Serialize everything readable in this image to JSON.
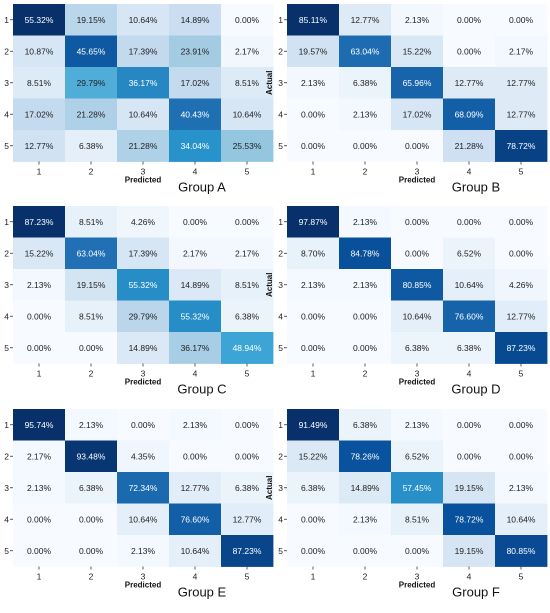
{
  "figure": {
    "xlabel": "Predicted",
    "ylabel": "Actual",
    "colors": {
      "low": "#f7fbff",
      "mid": "#9ecae1",
      "accent": "#2b9fd3",
      "high": "#08306b",
      "text_dark": "#222222",
      "text_light": "#ffffff"
    }
  },
  "chart_data": [
    {
      "type": "heatmap",
      "title": "Group A",
      "xlabel": "Predicted",
      "ylabel": "Actual",
      "x_categories": [
        "1",
        "2",
        "3",
        "4",
        "5"
      ],
      "y_categories": [
        "1",
        "2",
        "3",
        "4",
        "5"
      ],
      "values": [
        [
          "55.32%",
          "19.15%",
          "10.64%",
          "14.89%",
          "0.00%"
        ],
        [
          "10.87%",
          "45.65%",
          "17.39%",
          "23.91%",
          "2.17%"
        ],
        [
          "8.51%",
          "29.79%",
          "36.17%",
          "17.02%",
          "8.51%"
        ],
        [
          "17.02%",
          "21.28%",
          "10.64%",
          "40.43%",
          "10.64%"
        ],
        [
          "12.77%",
          "6.38%",
          "21.28%",
          "34.04%",
          "25.53%"
        ]
      ]
    },
    {
      "type": "heatmap",
      "title": "Group B",
      "xlabel": "Predicted",
      "ylabel": "Actual",
      "x_categories": [
        "1",
        "2",
        "3",
        "4",
        "5"
      ],
      "y_categories": [
        "1",
        "2",
        "3",
        "4",
        "5"
      ],
      "values": [
        [
          "85.11%",
          "12.77%",
          "2.13%",
          "0.00%",
          "0.00%"
        ],
        [
          "19.57%",
          "63.04%",
          "15.22%",
          "0.00%",
          "2.17%"
        ],
        [
          "2.13%",
          "6.38%",
          "65.96%",
          "12.77%",
          "12.77%"
        ],
        [
          "0.00%",
          "2.13%",
          "17.02%",
          "68.09%",
          "12.77%"
        ],
        [
          "0.00%",
          "0.00%",
          "0.00%",
          "21.28%",
          "78.72%"
        ]
      ]
    },
    {
      "type": "heatmap",
      "title": "Group C",
      "xlabel": "Predicted",
      "ylabel": "Actual",
      "x_categories": [
        "1",
        "2",
        "3",
        "4",
        "5"
      ],
      "y_categories": [
        "1",
        "2",
        "3",
        "4",
        "5"
      ],
      "values": [
        [
          "87.23%",
          "8.51%",
          "4.26%",
          "0.00%",
          "0.00%"
        ],
        [
          "15.22%",
          "63.04%",
          "17.39%",
          "2.17%",
          "2.17%"
        ],
        [
          "2.13%",
          "19.15%",
          "55.32%",
          "14.89%",
          "8.51%"
        ],
        [
          "0.00%",
          "8.51%",
          "29.79%",
          "55.32%",
          "6.38%"
        ],
        [
          "0.00%",
          "0.00%",
          "14.89%",
          "36.17%",
          "48.94%"
        ]
      ]
    },
    {
      "type": "heatmap",
      "title": "Group D",
      "xlabel": "Predicted",
      "ylabel": "Actual",
      "x_categories": [
        "1",
        "2",
        "3",
        "4",
        "5"
      ],
      "y_categories": [
        "1",
        "2",
        "3",
        "4",
        "5"
      ],
      "values": [
        [
          "97.87%",
          "2.13%",
          "0.00%",
          "0.00%",
          "0.00%"
        ],
        [
          "8.70%",
          "84.78%",
          "0.00%",
          "6.52%",
          "0.00%"
        ],
        [
          "2.13%",
          "2.13%",
          "80.85%",
          "10.64%",
          "4.26%"
        ],
        [
          "0.00%",
          "0.00%",
          "10.64%",
          "76.60%",
          "12.77%"
        ],
        [
          "0.00%",
          "0.00%",
          "6.38%",
          "6.38%",
          "87.23%"
        ]
      ]
    },
    {
      "type": "heatmap",
      "title": "Group E",
      "xlabel": "Predicted",
      "ylabel": "Actual",
      "x_categories": [
        "1",
        "2",
        "3",
        "4",
        "5"
      ],
      "y_categories": [
        "1",
        "2",
        "3",
        "4",
        "5"
      ],
      "values": [
        [
          "95.74%",
          "2.13%",
          "0.00%",
          "2.13%",
          "0.00%"
        ],
        [
          "2.17%",
          "93.48%",
          "4.35%",
          "0.00%",
          "0.00%"
        ],
        [
          "2.13%",
          "6.38%",
          "72.34%",
          "12.77%",
          "6.38%"
        ],
        [
          "0.00%",
          "0.00%",
          "10.64%",
          "76.60%",
          "12.77%"
        ],
        [
          "0.00%",
          "0.00%",
          "2.13%",
          "10.64%",
          "87.23%"
        ]
      ]
    },
    {
      "type": "heatmap",
      "title": "Group F",
      "xlabel": "Predicted",
      "ylabel": "Actual",
      "x_categories": [
        "1",
        "2",
        "3",
        "4",
        "5"
      ],
      "y_categories": [
        "1",
        "2",
        "3",
        "4",
        "5"
      ],
      "values": [
        [
          "91.49%",
          "6.38%",
          "2.13%",
          "0.00%",
          "0.00%"
        ],
        [
          "15.22%",
          "78.26%",
          "6.52%",
          "0.00%",
          "0.00%"
        ],
        [
          "6.38%",
          "14.89%",
          "57.45%",
          "19.15%",
          "2.13%"
        ],
        [
          "0.00%",
          "2.13%",
          "8.51%",
          "78.72%",
          "10.64%"
        ],
        [
          "0.00%",
          "0.00%",
          "0.00%",
          "19.15%",
          "80.85%"
        ]
      ]
    }
  ]
}
